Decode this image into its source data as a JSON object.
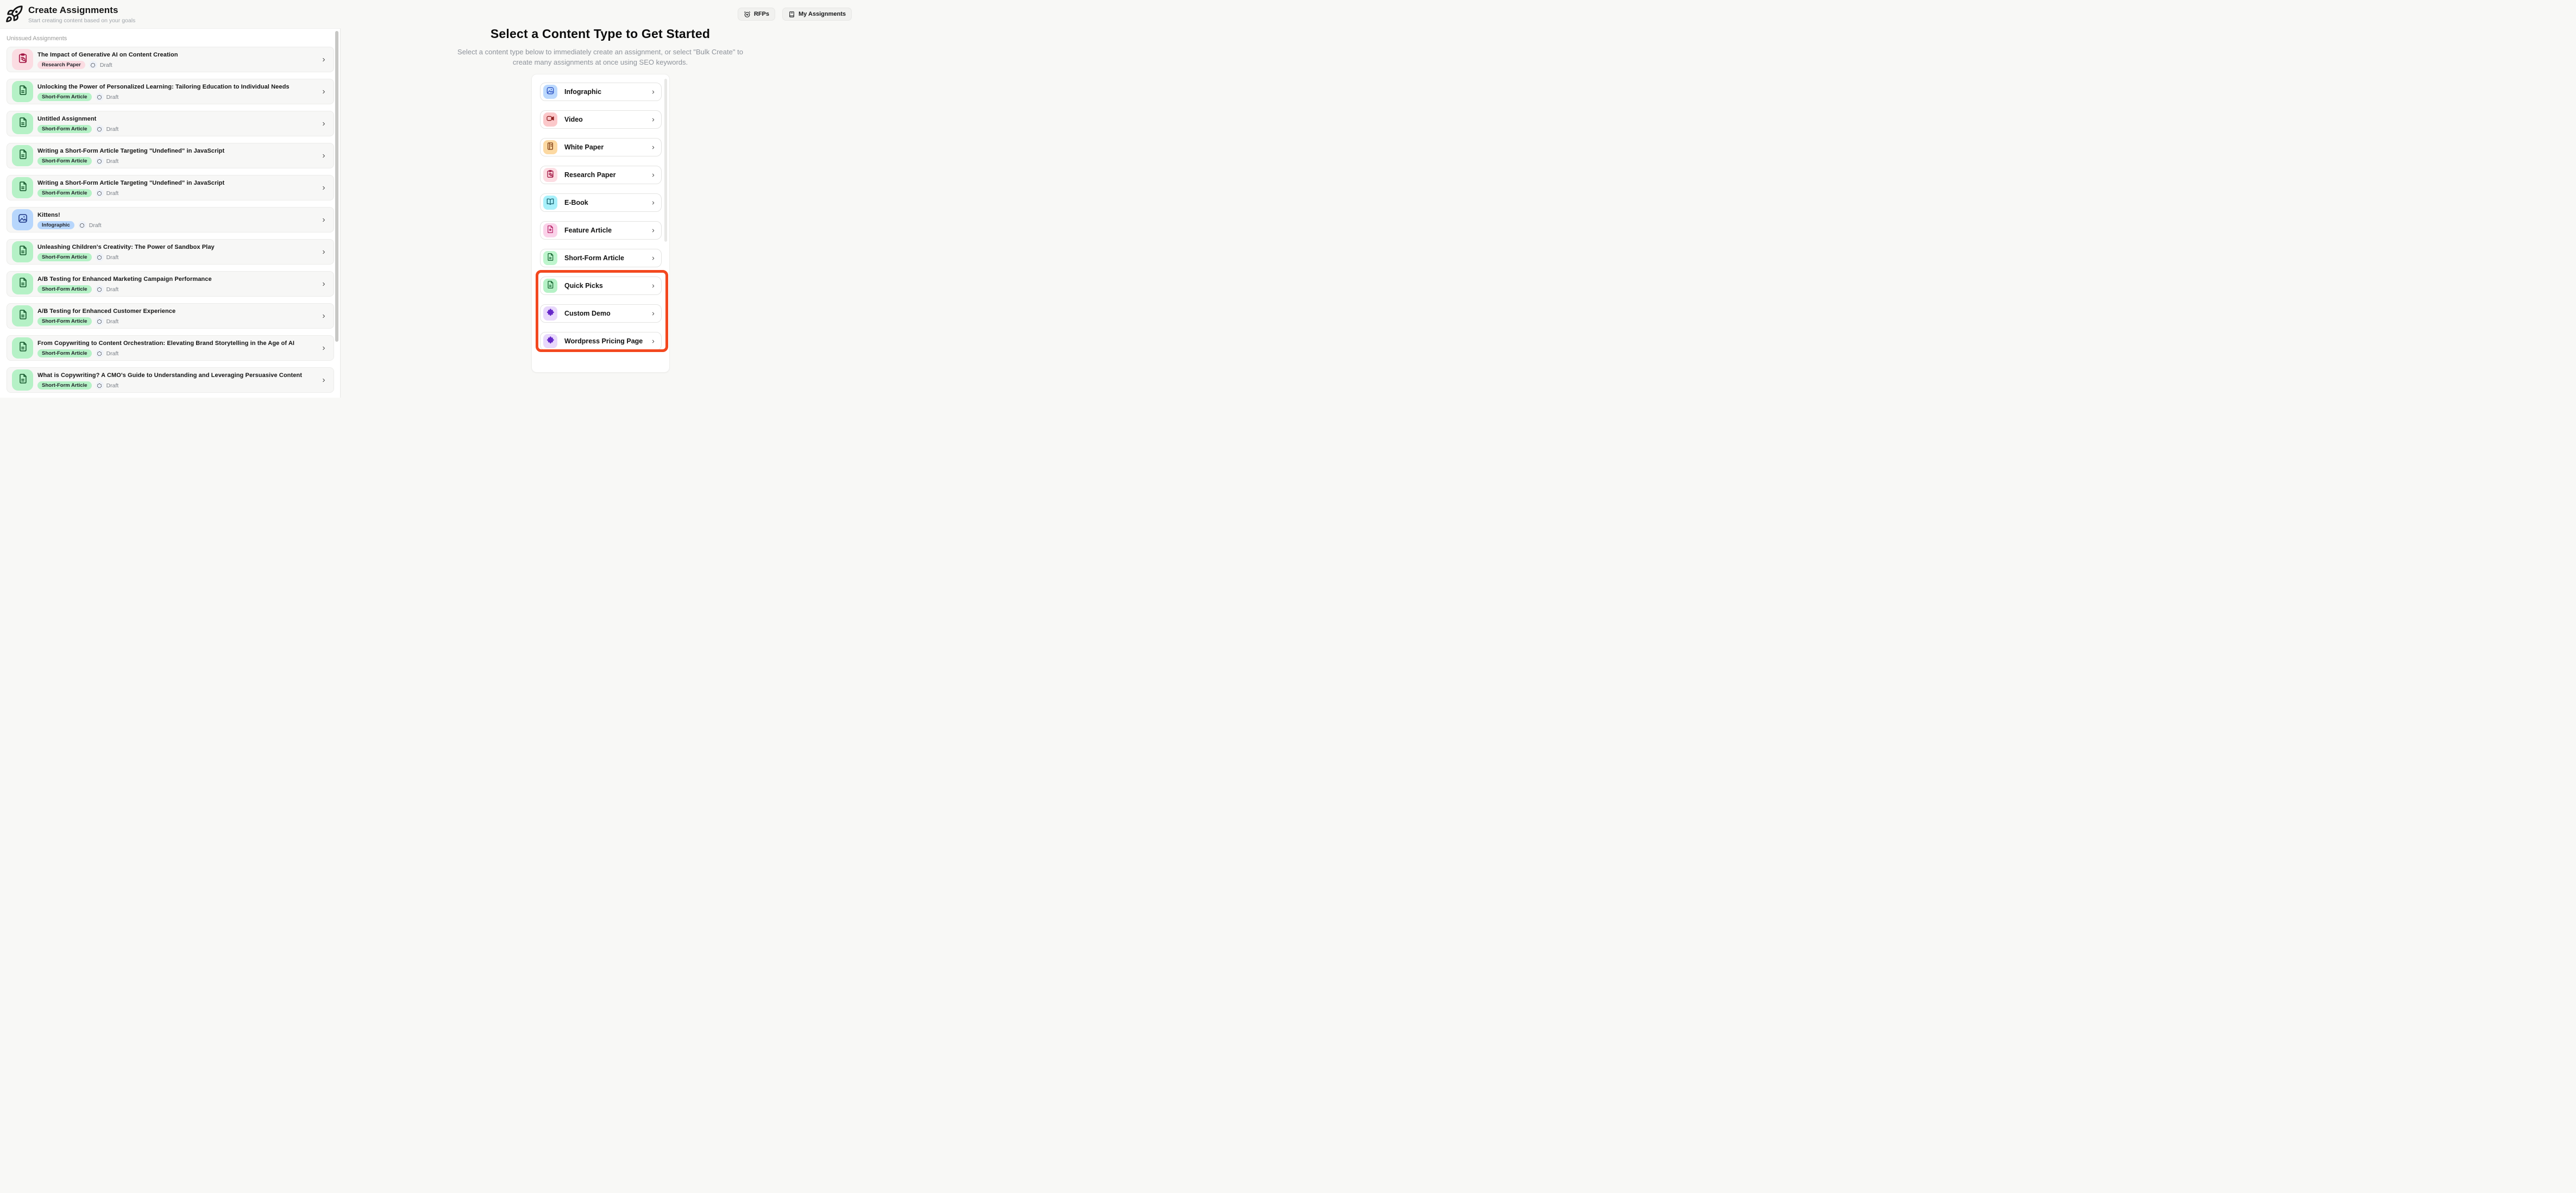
{
  "header": {
    "title": "Create Assignments",
    "subtitle": "Start creating content based on your goals",
    "logo_icon": "rocket-icon",
    "actions": [
      {
        "label": "RFPs",
        "icon": "timer-icon"
      },
      {
        "label": "My Assignments",
        "icon": "book-icon"
      }
    ]
  },
  "left_panel": {
    "section_label": "Unissued Assignments",
    "status_icon": "dashed-circle-icon",
    "status_icon_bg": "#eef2f9",
    "assignments": [
      {
        "title": "The Impact of Generative AI on Content Creation",
        "type_badge": "Research Paper",
        "status": "Draft",
        "icon": "clipboard-search-icon",
        "tile_bg": "#fbdce2",
        "icon_color": "#a31744",
        "badge_bg": "#fbdce2"
      },
      {
        "title": "Unlocking the Power of Personalized Learning: Tailoring Education to Individual Needs",
        "type_badge": "Short-Form Article",
        "status": "Draft",
        "icon": "document-icon",
        "tile_bg": "#b5f1c6",
        "icon_color": "#1a5c31",
        "badge_bg": "#b5f1c6"
      },
      {
        "title": "Untitled Assignment",
        "type_badge": "Short-Form Article",
        "status": "Draft",
        "icon": "document-icon",
        "tile_bg": "#b5f1c6",
        "icon_color": "#1a5c31",
        "badge_bg": "#b5f1c6"
      },
      {
        "title": "Writing a Short-Form Article Targeting \"Undefined\" in JavaScript",
        "type_badge": "Short-Form Article",
        "status": "Draft",
        "icon": "document-icon",
        "tile_bg": "#b5f1c6",
        "icon_color": "#1a5c31",
        "badge_bg": "#b5f1c6"
      },
      {
        "title": "Writing a Short-Form Article Targeting \"Undefined\" in JavaScript",
        "type_badge": "Short-Form Article",
        "status": "Draft",
        "icon": "document-icon",
        "tile_bg": "#b5f1c6",
        "icon_color": "#1a5c31",
        "badge_bg": "#b5f1c6"
      },
      {
        "title": "Kittens!",
        "type_badge": "Infographic",
        "status": "Draft",
        "icon": "image-icon",
        "tile_bg": "#b7d6fc",
        "icon_color": "#27418d",
        "badge_bg": "#b7d6fc"
      },
      {
        "title": "Unleashing Children's Creativity: The Power of Sandbox Play",
        "type_badge": "Short-Form Article",
        "status": "Draft",
        "icon": "document-icon",
        "tile_bg": "#b5f1c6",
        "icon_color": "#1a5c31",
        "badge_bg": "#b5f1c6"
      },
      {
        "title": "A/B Testing for Enhanced Marketing Campaign Performance",
        "type_badge": "Short-Form Article",
        "status": "Draft",
        "icon": "document-icon",
        "tile_bg": "#b5f1c6",
        "icon_color": "#1a5c31",
        "badge_bg": "#b5f1c6"
      },
      {
        "title": "A/B Testing for Enhanced Customer Experience",
        "type_badge": "Short-Form Article",
        "status": "Draft",
        "icon": "document-icon",
        "tile_bg": "#b5f1c6",
        "icon_color": "#1a5c31",
        "badge_bg": "#b5f1c6"
      },
      {
        "title": "From Copywriting to Content Orchestration: Elevating Brand Storytelling in the Age of AI",
        "type_badge": "Short-Form Article",
        "status": "Draft",
        "icon": "document-icon",
        "tile_bg": "#b5f1c6",
        "icon_color": "#1a5c31",
        "badge_bg": "#b5f1c6"
      },
      {
        "title": "What is Copywriting? A CMO's Guide to Understanding and Leveraging Persuasive Content",
        "type_badge": "Short-Form Article",
        "status": "Draft",
        "icon": "document-icon",
        "tile_bg": "#b5f1c6",
        "icon_color": "#1a5c31",
        "badge_bg": "#b5f1c6"
      }
    ]
  },
  "right_panel": {
    "heading": "Select a Content Type to Get Started",
    "subheading": "Select a content type below to immediately create an assignment, or select \"Bulk Create\" to create many assignments at once using SEO keywords.",
    "highlight_color": "#f3481f",
    "content_types": [
      {
        "label": "Infographic",
        "icon": "image-icon",
        "tile_bg": "#bcd9fd",
        "icon_color": "#2b50c4",
        "highlighted": false
      },
      {
        "label": "Video",
        "icon": "video-icon",
        "tile_bg": "#fbc8ca",
        "icon_color": "#8f2020",
        "highlighted": false
      },
      {
        "label": "White Paper",
        "icon": "notebook-icon",
        "tile_bg": "#fcd9a2",
        "icon_color": "#7d3a12",
        "highlighted": false
      },
      {
        "label": "Research Paper",
        "icon": "clipboard-search-icon",
        "tile_bg": "#fcdce2",
        "icon_color": "#a31744",
        "highlighted": false
      },
      {
        "label": "E-Book",
        "icon": "open-book-icon",
        "tile_bg": "#a8f0fa",
        "icon_color": "#15616f",
        "highlighted": false
      },
      {
        "label": "Feature Article",
        "icon": "document-star-icon",
        "tile_bg": "#fad2e9",
        "icon_color": "#bc2e6e",
        "highlighted": false
      },
      {
        "label": "Short-Form Article",
        "icon": "document-icon",
        "tile_bg": "#bef5cd",
        "icon_color": "#1d6b38",
        "highlighted": false
      },
      {
        "label": "Quick Picks",
        "icon": "document-icon",
        "tile_bg": "#b5f1c6",
        "icon_color": "#1d6b38",
        "highlighted": true
      },
      {
        "label": "Custom Demo",
        "icon": "puzzle-icon",
        "tile_bg": "#e8d8fb",
        "icon_color": "#6527c9",
        "highlighted": true
      },
      {
        "label": "Wordpress Pricing Page",
        "icon": "puzzle-icon",
        "tile_bg": "#e8d8fb",
        "icon_color": "#6527c9",
        "highlighted": true
      }
    ]
  }
}
